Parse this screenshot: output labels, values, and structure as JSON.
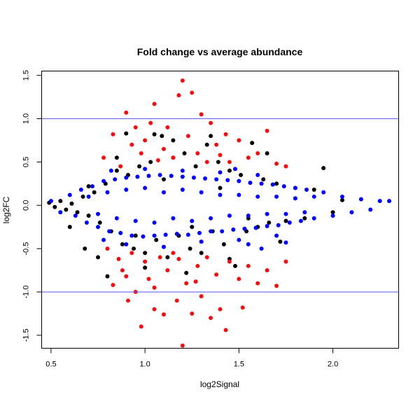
{
  "chart_data": {
    "type": "scatter",
    "title": "Fold change vs average abundance",
    "xlabel": "log2Signal",
    "ylabel": "log2FC",
    "xlim": [
      0.45,
      2.35
    ],
    "ylim": [
      -1.65,
      1.55
    ],
    "xticks": [
      0.5,
      1.0,
      1.5,
      2.0
    ],
    "xtick_labels": [
      "0.5",
      "1.0",
      "1.5",
      "2.0"
    ],
    "yticks": [
      -1.5,
      -1.0,
      -0.5,
      0.0,
      0.5,
      1.0,
      1.5
    ],
    "ytick_labels": [
      "-1.5",
      "-1.0",
      "-0.5",
      "0.0",
      "0.5",
      "1.0",
      "1.5"
    ],
    "threshold_lines": [
      1.0,
      -1.0
    ],
    "threshold_color": "#5555ee",
    "grid": false,
    "series": [
      {
        "color": "#000000",
        "points": [
          [
            0.49,
            0.03
          ],
          [
            0.52,
            -0.02
          ],
          [
            0.55,
            0.05
          ],
          [
            0.58,
            -0.05
          ],
          [
            0.61,
            0.02
          ],
          [
            0.64,
            -0.08
          ],
          [
            0.67,
            0.1
          ],
          [
            0.7,
            -0.12
          ],
          [
            0.73,
            0.15
          ],
          [
            0.76,
            -0.2
          ],
          [
            0.79,
            0.25
          ],
          [
            0.82,
            -0.3
          ],
          [
            0.85,
            0.4
          ],
          [
            0.88,
            -0.45
          ],
          [
            0.91,
            0.35
          ],
          [
            0.94,
            -0.5
          ],
          [
            0.97,
            0.45
          ],
          [
            1.0,
            -0.55
          ],
          [
            1.03,
            0.5
          ],
          [
            1.06,
            -0.4
          ],
          [
            1.09,
            0.8
          ],
          [
            1.12,
            -0.6
          ],
          [
            1.15,
            0.55
          ],
          [
            1.18,
            -0.35
          ],
          [
            1.21,
            0.6
          ],
          [
            1.24,
            -0.5
          ],
          [
            1.27,
            0.45
          ],
          [
            1.3,
            -0.55
          ],
          [
            1.33,
            0.7
          ],
          [
            1.36,
            -0.3
          ],
          [
            1.39,
            0.5
          ],
          [
            1.42,
            -0.45
          ],
          [
            1.45,
            0.4
          ],
          [
            1.48,
            -0.7
          ],
          [
            1.51,
            0.35
          ],
          [
            1.54,
            -0.3
          ],
          [
            1.57,
            0.72
          ],
          [
            1.6,
            -0.25
          ],
          [
            1.63,
            0.3
          ],
          [
            1.66,
            -0.2
          ],
          [
            1.7,
            0.25
          ],
          [
            1.75,
            -0.18
          ],
          [
            1.8,
            0.2
          ],
          [
            1.85,
            -0.15
          ],
          [
            1.9,
            0.18
          ],
          [
            1.95,
            0.43
          ],
          [
            2.0,
            -0.08
          ],
          [
            2.05,
            0.06
          ],
          [
            0.75,
            -0.6
          ],
          [
            0.8,
            -0.82
          ],
          [
            0.9,
            0.83
          ],
          [
            1.0,
            -0.72
          ],
          [
            1.05,
            0.82
          ],
          [
            1.15,
            0.75
          ],
          [
            1.22,
            -0.78
          ],
          [
            1.35,
            0.8
          ],
          [
            1.45,
            -0.62
          ],
          [
            0.85,
            0.55
          ],
          [
            0.95,
            -0.35
          ],
          [
            1.1,
            0.3
          ],
          [
            1.25,
            -0.25
          ],
          [
            1.4,
            0.2
          ],
          [
            1.55,
            -0.15
          ],
          [
            0.7,
            0.22
          ],
          [
            0.6,
            -0.25
          ],
          [
            0.68,
            -0.5
          ],
          [
            1.65,
            0.6
          ],
          [
            1.72,
            -0.42
          ]
        ]
      },
      {
        "color": "#0000ff",
        "points": [
          [
            0.5,
            0.05
          ],
          [
            0.55,
            -0.08
          ],
          [
            0.6,
            0.12
          ],
          [
            0.63,
            -0.12
          ],
          [
            0.66,
            0.18
          ],
          [
            0.69,
            -0.2
          ],
          [
            0.72,
            0.22
          ],
          [
            0.75,
            -0.25
          ],
          [
            0.78,
            0.28
          ],
          [
            0.81,
            -0.3
          ],
          [
            0.84,
            0.3
          ],
          [
            0.87,
            -0.32
          ],
          [
            0.9,
            0.32
          ],
          [
            0.93,
            -0.35
          ],
          [
            0.96,
            0.33
          ],
          [
            0.99,
            -0.36
          ],
          [
            1.02,
            0.34
          ],
          [
            1.05,
            -0.35
          ],
          [
            1.08,
            0.35
          ],
          [
            1.11,
            -0.34
          ],
          [
            1.14,
            0.34
          ],
          [
            1.17,
            -0.33
          ],
          [
            1.2,
            0.33
          ],
          [
            1.23,
            -0.34
          ],
          [
            1.26,
            0.32
          ],
          [
            1.29,
            -0.32
          ],
          [
            1.32,
            0.31
          ],
          [
            1.35,
            -0.3
          ],
          [
            1.38,
            0.3
          ],
          [
            1.41,
            -0.3
          ],
          [
            1.44,
            0.29
          ],
          [
            1.47,
            -0.28
          ],
          [
            1.5,
            0.28
          ],
          [
            1.53,
            -0.27
          ],
          [
            1.56,
            0.26
          ],
          [
            1.59,
            -0.26
          ],
          [
            1.62,
            0.25
          ],
          [
            1.65,
            -0.24
          ],
          [
            1.68,
            0.24
          ],
          [
            1.71,
            -0.23
          ],
          [
            1.74,
            0.22
          ],
          [
            1.77,
            -0.2
          ],
          [
            1.8,
            0.2
          ],
          [
            1.83,
            -0.18
          ],
          [
            1.86,
            0.18
          ],
          [
            1.9,
            -0.15
          ],
          [
            1.95,
            0.15
          ],
          [
            2.0,
            -0.12
          ],
          [
            2.05,
            0.1
          ],
          [
            2.1,
            -0.08
          ],
          [
            2.15,
            0.07
          ],
          [
            2.2,
            -0.05
          ],
          [
            2.25,
            0.05
          ],
          [
            2.3,
            0.05
          ],
          [
            0.7,
            0.1
          ],
          [
            0.75,
            -0.1
          ],
          [
            0.8,
            0.15
          ],
          [
            0.85,
            -0.15
          ],
          [
            0.9,
            0.18
          ],
          [
            0.95,
            -0.18
          ],
          [
            1.0,
            0.2
          ],
          [
            1.05,
            -0.2
          ],
          [
            1.1,
            0.15
          ],
          [
            1.15,
            -0.15
          ],
          [
            1.2,
            0.18
          ],
          [
            1.25,
            -0.18
          ],
          [
            1.3,
            0.15
          ],
          [
            1.35,
            -0.15
          ],
          [
            1.4,
            0.12
          ],
          [
            1.45,
            -0.12
          ],
          [
            1.5,
            0.12
          ],
          [
            1.55,
            -0.12
          ],
          [
            1.6,
            0.1
          ],
          [
            1.65,
            -0.1
          ],
          [
            1.7,
            0.1
          ],
          [
            1.75,
            -0.1
          ],
          [
            1.8,
            0.08
          ],
          [
            1.85,
            -0.08
          ],
          [
            0.82,
            0.4
          ],
          [
            0.9,
            -0.45
          ],
          [
            1.0,
            0.42
          ],
          [
            1.1,
            -0.48
          ],
          [
            1.2,
            0.4
          ],
          [
            1.3,
            -0.42
          ],
          [
            1.4,
            0.38
          ],
          [
            1.5,
            -0.4
          ],
          [
            1.6,
            0.35
          ],
          [
            1.7,
            -0.35
          ],
          [
            1.75,
            -0.43
          ],
          [
            1.62,
            -0.5
          ],
          [
            1.55,
            -0.45
          ],
          [
            0.78,
            -0.4
          ],
          [
            1.48,
            0.42
          ],
          [
            1.9,
            0.1
          ]
        ]
      },
      {
        "color": "#ee1111",
        "points": [
          [
            0.78,
            0.55
          ],
          [
            0.83,
            0.82
          ],
          [
            0.87,
            0.45
          ],
          [
            0.9,
            1.07
          ],
          [
            0.93,
            0.7
          ],
          [
            0.95,
            0.9
          ],
          [
            0.98,
            0.6
          ],
          [
            1.0,
            0.75
          ],
          [
            1.03,
            0.95
          ],
          [
            1.05,
            1.17
          ],
          [
            1.07,
            0.52
          ],
          [
            1.1,
            0.65
          ],
          [
            1.12,
            0.9
          ],
          [
            1.15,
            0.55
          ],
          [
            1.18,
            1.27
          ],
          [
            1.2,
            1.44
          ],
          [
            1.23,
            0.8
          ],
          [
            1.25,
            1.3
          ],
          [
            1.28,
            0.6
          ],
          [
            1.3,
            1.05
          ],
          [
            1.33,
            0.5
          ],
          [
            1.35,
            0.95
          ],
          [
            1.38,
            0.7
          ],
          [
            1.4,
            0.58
          ],
          [
            1.43,
            0.82
          ],
          [
            1.45,
            0.5
          ],
          [
            1.5,
            0.75
          ],
          [
            1.55,
            0.55
          ],
          [
            1.6,
            0.6
          ],
          [
            1.65,
            0.86
          ],
          [
            1.7,
            0.48
          ],
          [
            1.75,
            0.45
          ],
          [
            0.8,
            -0.5
          ],
          [
            0.83,
            -0.92
          ],
          [
            0.86,
            -0.62
          ],
          [
            0.88,
            -0.75
          ],
          [
            0.91,
            -1.1
          ],
          [
            0.93,
            -0.55
          ],
          [
            0.95,
            -1.0
          ],
          [
            0.98,
            -1.4
          ],
          [
            1.0,
            -0.65
          ],
          [
            1.02,
            -0.85
          ],
          [
            1.05,
            -1.2
          ],
          [
            1.08,
            -0.6
          ],
          [
            1.1,
            -1.26
          ],
          [
            1.12,
            -0.75
          ],
          [
            1.15,
            -0.55
          ],
          [
            1.17,
            -1.1
          ],
          [
            1.2,
            -1.62
          ],
          [
            1.22,
            -0.9
          ],
          [
            1.25,
            -1.25
          ],
          [
            1.28,
            -0.7
          ],
          [
            1.3,
            -1.05
          ],
          [
            1.33,
            -0.6
          ],
          [
            1.35,
            -1.3
          ],
          [
            1.38,
            -0.8
          ],
          [
            1.4,
            -1.2
          ],
          [
            1.43,
            -1.44
          ],
          [
            1.45,
            -0.65
          ],
          [
            1.5,
            -0.85
          ],
          [
            1.52,
            -1.18
          ],
          [
            1.55,
            -0.7
          ],
          [
            1.6,
            -0.9
          ],
          [
            1.65,
            -0.75
          ],
          [
            1.7,
            -0.93
          ],
          [
            1.75,
            -0.65
          ],
          [
            1.05,
            -0.95
          ],
          [
            1.18,
            -0.62
          ],
          [
            0.9,
            -0.82
          ],
          [
            1.27,
            -0.88
          ]
        ]
      }
    ]
  }
}
